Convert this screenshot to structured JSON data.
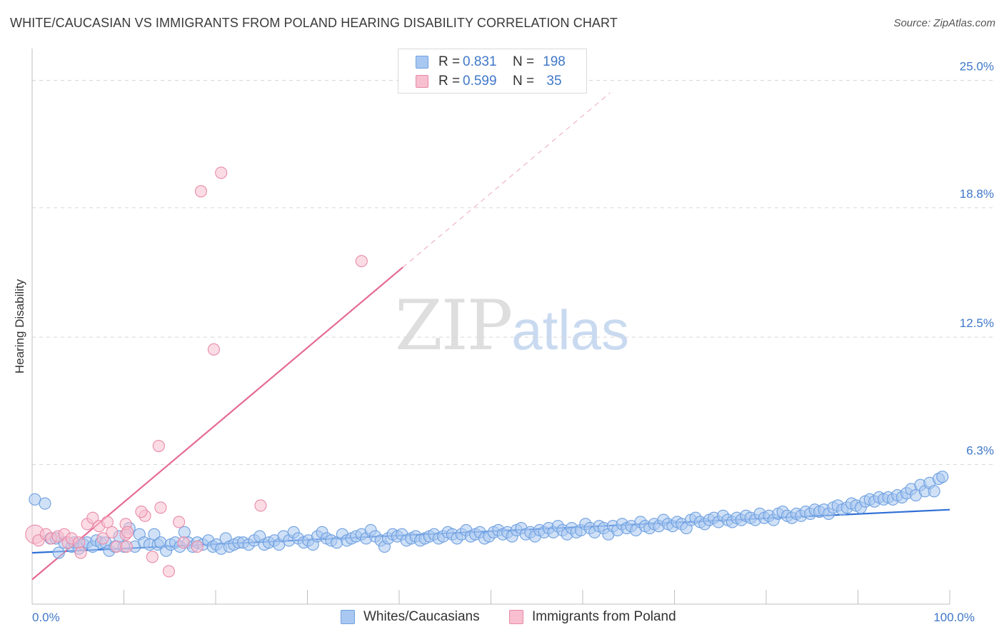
{
  "title": "WHITE/CAUCASIAN VS IMMIGRANTS FROM POLAND HEARING DISABILITY CORRELATION CHART",
  "source": "Source: ZipAtlas.com",
  "watermark": {
    "zip": "ZIP",
    "atlas": "atlas"
  },
  "legend": {
    "rows": [
      {
        "r_label": "R =",
        "r_value": "0.831",
        "n_label": "N =",
        "n_value": "198",
        "color": "#a9c8f1",
        "border": "#6d9fe0"
      },
      {
        "r_label": "R =",
        "r_value": "0.599",
        "n_label": "N =",
        "n_value": "35",
        "color": "#f7bfd0",
        "border": "#e88aa8"
      }
    ]
  },
  "bottom_legend": [
    {
      "label": "Whites/Caucasians",
      "color": "#a9c8f1",
      "border": "#6d9fe0"
    },
    {
      "label": "Immigrants from Poland",
      "color": "#f7bfd0",
      "border": "#e88aa8"
    }
  ],
  "chart_data": {
    "type": "scatter",
    "ylabel": "Hearing Disability",
    "xlim": [
      0,
      100
    ],
    "ylim": [
      0,
      25
    ],
    "x_tick_labels": [
      {
        "value": 0,
        "label": "0.0%"
      },
      {
        "value": 100,
        "label": "100.0%"
      }
    ],
    "y_tick_labels": [
      {
        "value": 6.3,
        "label": "6.3%"
      },
      {
        "value": 12.5,
        "label": "12.5%"
      },
      {
        "value": 18.8,
        "label": "18.8%"
      },
      {
        "value": 25.0,
        "label": "25.0%"
      }
    ],
    "grid": true,
    "series": [
      {
        "name": "Whites/Caucasians",
        "color": "#6d9fe0",
        "fill": "#a9c8f1",
        "trend": {
          "x": [
            0,
            100
          ],
          "y": [
            2.0,
            4.1
          ]
        },
        "points": [
          [
            0.3,
            4.6
          ],
          [
            1.4,
            4.4
          ],
          [
            2.0,
            2.7
          ],
          [
            2.6,
            2.7
          ],
          [
            2.9,
            2.0
          ],
          [
            3.5,
            2.5
          ],
          [
            4.3,
            2.3
          ],
          [
            4.6,
            2.5
          ],
          [
            5.1,
            2.2
          ],
          [
            5.6,
            2.4
          ],
          [
            6.0,
            2.5
          ],
          [
            6.6,
            2.3
          ],
          [
            7.0,
            2.6
          ],
          [
            7.5,
            2.5
          ],
          [
            8.0,
            2.5
          ],
          [
            8.4,
            2.1
          ],
          [
            9.0,
            2.3
          ],
          [
            9.5,
            2.8
          ],
          [
            10.0,
            2.3
          ],
          [
            10.6,
            3.2
          ],
          [
            11.2,
            2.3
          ],
          [
            11.7,
            2.9
          ],
          [
            12.2,
            2.5
          ],
          [
            12.8,
            2.4
          ],
          [
            13.3,
            2.9
          ],
          [
            13.7,
            2.4
          ],
          [
            14.0,
            2.5
          ],
          [
            14.6,
            2.1
          ],
          [
            15.1,
            2.4
          ],
          [
            15.6,
            2.5
          ],
          [
            16.1,
            2.3
          ],
          [
            16.6,
            3.0
          ],
          [
            17.0,
            2.5
          ],
          [
            17.5,
            2.3
          ],
          [
            18.0,
            2.5
          ],
          [
            18.6,
            2.4
          ],
          [
            19.2,
            2.6
          ],
          [
            19.7,
            2.3
          ],
          [
            20.1,
            2.4
          ],
          [
            20.6,
            2.2
          ],
          [
            21.1,
            2.7
          ],
          [
            21.5,
            2.3
          ],
          [
            22.0,
            2.4
          ],
          [
            22.5,
            2.5
          ],
          [
            23.0,
            2.5
          ],
          [
            23.6,
            2.4
          ],
          [
            24.2,
            2.6
          ],
          [
            24.8,
            2.8
          ],
          [
            25.3,
            2.4
          ],
          [
            25.8,
            2.5
          ],
          [
            26.4,
            2.6
          ],
          [
            26.9,
            2.4
          ],
          [
            27.4,
            2.8
          ],
          [
            28.0,
            2.6
          ],
          [
            28.5,
            3.0
          ],
          [
            29.0,
            2.7
          ],
          [
            29.6,
            2.5
          ],
          [
            30.1,
            2.6
          ],
          [
            30.6,
            2.4
          ],
          [
            31.1,
            2.8
          ],
          [
            31.6,
            3.0
          ],
          [
            32.1,
            2.7
          ],
          [
            32.6,
            2.6
          ],
          [
            33.2,
            2.5
          ],
          [
            33.8,
            2.9
          ],
          [
            34.3,
            2.6
          ],
          [
            34.8,
            2.7
          ],
          [
            35.3,
            2.8
          ],
          [
            35.9,
            2.9
          ],
          [
            36.4,
            2.7
          ],
          [
            36.9,
            3.1
          ],
          [
            37.4,
            2.8
          ],
          [
            38.0,
            2.6
          ],
          [
            38.4,
            2.3
          ],
          [
            38.8,
            2.7
          ],
          [
            39.3,
            2.9
          ],
          [
            39.8,
            2.8
          ],
          [
            40.3,
            2.9
          ],
          [
            40.8,
            2.6
          ],
          [
            41.3,
            2.7
          ],
          [
            41.8,
            2.8
          ],
          [
            42.3,
            2.6
          ],
          [
            42.8,
            2.7
          ],
          [
            43.3,
            2.8
          ],
          [
            43.8,
            2.9
          ],
          [
            44.3,
            2.7
          ],
          [
            44.8,
            2.8
          ],
          [
            45.3,
            3.0
          ],
          [
            45.8,
            2.9
          ],
          [
            46.3,
            2.7
          ],
          [
            46.8,
            2.9
          ],
          [
            47.3,
            3.1
          ],
          [
            47.8,
            2.8
          ],
          [
            48.3,
            2.9
          ],
          [
            48.8,
            3.0
          ],
          [
            49.3,
            2.7
          ],
          [
            49.8,
            2.8
          ],
          [
            50.3,
            3.0
          ],
          [
            50.8,
            3.1
          ],
          [
            51.3,
            2.9
          ],
          [
            51.8,
            3.0
          ],
          [
            52.3,
            2.8
          ],
          [
            52.8,
            3.1
          ],
          [
            53.3,
            3.2
          ],
          [
            53.8,
            2.9
          ],
          [
            54.3,
            3.0
          ],
          [
            54.8,
            2.8
          ],
          [
            55.3,
            3.1
          ],
          [
            55.8,
            3.0
          ],
          [
            56.3,
            3.2
          ],
          [
            56.8,
            3.0
          ],
          [
            57.3,
            3.3
          ],
          [
            57.8,
            3.1
          ],
          [
            58.3,
            2.9
          ],
          [
            58.8,
            3.2
          ],
          [
            59.3,
            3.0
          ],
          [
            59.8,
            3.1
          ],
          [
            60.3,
            3.4
          ],
          [
            60.8,
            3.2
          ],
          [
            61.3,
            3.0
          ],
          [
            61.8,
            3.3
          ],
          [
            62.3,
            3.2
          ],
          [
            62.8,
            2.9
          ],
          [
            63.3,
            3.3
          ],
          [
            63.8,
            3.1
          ],
          [
            64.3,
            3.4
          ],
          [
            64.8,
            3.2
          ],
          [
            65.3,
            3.3
          ],
          [
            65.8,
            3.1
          ],
          [
            66.3,
            3.5
          ],
          [
            66.8,
            3.3
          ],
          [
            67.3,
            3.2
          ],
          [
            67.8,
            3.4
          ],
          [
            68.3,
            3.3
          ],
          [
            68.8,
            3.6
          ],
          [
            69.3,
            3.4
          ],
          [
            69.8,
            3.3
          ],
          [
            70.3,
            3.5
          ],
          [
            70.8,
            3.4
          ],
          [
            71.3,
            3.2
          ],
          [
            71.8,
            3.6
          ],
          [
            72.3,
            3.7
          ],
          [
            72.8,
            3.5
          ],
          [
            73.3,
            3.4
          ],
          [
            73.8,
            3.6
          ],
          [
            74.3,
            3.7
          ],
          [
            74.8,
            3.5
          ],
          [
            75.3,
            3.8
          ],
          [
            75.8,
            3.6
          ],
          [
            76.3,
            3.5
          ],
          [
            76.8,
            3.7
          ],
          [
            77.3,
            3.6
          ],
          [
            77.8,
            3.8
          ],
          [
            78.3,
            3.7
          ],
          [
            78.8,
            3.6
          ],
          [
            79.3,
            3.9
          ],
          [
            79.8,
            3.7
          ],
          [
            80.3,
            3.8
          ],
          [
            80.8,
            3.6
          ],
          [
            81.3,
            3.9
          ],
          [
            81.8,
            4.0
          ],
          [
            82.3,
            3.8
          ],
          [
            82.8,
            3.7
          ],
          [
            83.3,
            3.9
          ],
          [
            83.8,
            3.8
          ],
          [
            84.3,
            4.0
          ],
          [
            84.8,
            3.9
          ],
          [
            85.3,
            4.1
          ],
          [
            85.8,
            4.0
          ],
          [
            86.3,
            4.1
          ],
          [
            86.8,
            3.9
          ],
          [
            87.3,
            4.2
          ],
          [
            87.8,
            4.3
          ],
          [
            88.3,
            4.1
          ],
          [
            88.8,
            4.2
          ],
          [
            89.3,
            4.4
          ],
          [
            89.8,
            4.3
          ],
          [
            90.3,
            4.2
          ],
          [
            90.8,
            4.5
          ],
          [
            91.3,
            4.6
          ],
          [
            91.8,
            4.5
          ],
          [
            92.3,
            4.7
          ],
          [
            92.8,
            4.6
          ],
          [
            93.3,
            4.7
          ],
          [
            93.8,
            4.6
          ],
          [
            94.3,
            4.8
          ],
          [
            94.8,
            4.7
          ],
          [
            95.3,
            4.9
          ],
          [
            95.8,
            5.1
          ],
          [
            96.3,
            4.8
          ],
          [
            96.8,
            5.3
          ],
          [
            97.3,
            5.0
          ],
          [
            97.8,
            5.4
          ],
          [
            98.3,
            5.0
          ],
          [
            98.8,
            5.6
          ],
          [
            99.2,
            5.7
          ]
        ]
      },
      {
        "name": "Immigrants from Poland",
        "color": "#e88aa8",
        "fill": "#f7bfd0",
        "trend": {
          "x": [
            0,
            40.4
          ],
          "y": [
            0.7,
            15.9
          ]
        },
        "trend_extension": {
          "x": [
            40.4,
            63.0
          ],
          "y": [
            15.9,
            24.4
          ]
        },
        "points": [
          [
            0.3,
            2.9
          ],
          [
            0.7,
            2.6
          ],
          [
            1.5,
            2.9
          ],
          [
            2.1,
            2.7
          ],
          [
            2.8,
            2.8
          ],
          [
            3.5,
            2.9
          ],
          [
            3.9,
            2.5
          ],
          [
            4.3,
            2.7
          ],
          [
            5.1,
            2.5
          ],
          [
            5.3,
            2.0
          ],
          [
            6.0,
            3.4
          ],
          [
            6.6,
            3.7
          ],
          [
            7.3,
            3.3
          ],
          [
            7.7,
            2.7
          ],
          [
            8.2,
            3.5
          ],
          [
            8.7,
            3.0
          ],
          [
            9.2,
            2.3
          ],
          [
            10.2,
            2.9
          ],
          [
            10.3,
            2.3
          ],
          [
            10.2,
            3.4
          ],
          [
            12.3,
            3.8
          ],
          [
            13.1,
            1.8
          ],
          [
            14.0,
            4.2
          ],
          [
            16.0,
            3.5
          ],
          [
            16.5,
            2.5
          ],
          [
            18.0,
            2.3
          ],
          [
            18.4,
            19.6
          ],
          [
            19.8,
            11.9
          ],
          [
            20.6,
            20.5
          ],
          [
            24.9,
            4.3
          ],
          [
            35.9,
            16.2
          ],
          [
            10.4,
            3.0
          ],
          [
            11.9,
            4.0
          ],
          [
            13.8,
            7.2
          ],
          [
            14.9,
            1.1
          ]
        ]
      }
    ]
  }
}
